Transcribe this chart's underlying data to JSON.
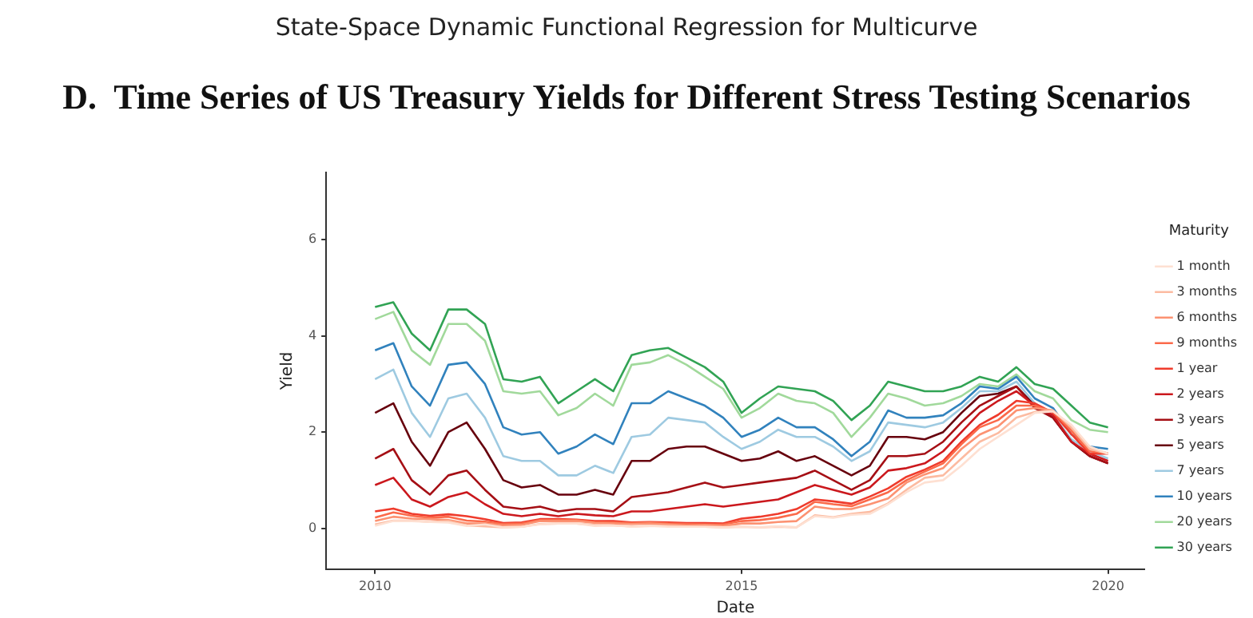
{
  "chart_data": {
    "type": "line",
    "subtitle": "State-Space Dynamic Functional Regression for Multicurve",
    "title": "D.  Time Series of US Treasury Yields for Different Stress Testing Scenarios",
    "xlabel": "Date",
    "ylabel": "Yield",
    "legend_title": "Maturity",
    "legend": "right",
    "grid": false,
    "marker": "none",
    "line_style": "solid",
    "x": [
      "2010-01",
      "2010-04",
      "2010-07",
      "2010-10",
      "2011-01",
      "2011-04",
      "2011-07",
      "2011-10",
      "2012-01",
      "2012-04",
      "2012-07",
      "2012-10",
      "2013-01",
      "2013-04",
      "2013-07",
      "2013-10",
      "2014-01",
      "2014-04",
      "2014-07",
      "2014-10",
      "2015-01",
      "2015-04",
      "2015-07",
      "2015-10",
      "2016-01",
      "2016-04",
      "2016-07",
      "2016-10",
      "2017-01",
      "2017-04",
      "2017-07",
      "2017-10",
      "2018-01",
      "2018-04",
      "2018-07",
      "2018-10",
      "2019-01",
      "2019-04",
      "2019-07",
      "2019-10",
      "2020-01"
    ],
    "xlim": [
      "2009-05",
      "2020-07"
    ],
    "xticks": [
      "2010",
      "2015",
      "2020"
    ],
    "ylim": [
      -0.85,
      7.4
    ],
    "yticks": [
      0,
      2,
      4,
      6
    ],
    "series": [
      {
        "name": "1 month",
        "color": "#fee0d2",
        "values": [
          0.05,
          0.15,
          0.15,
          0.13,
          0.12,
          0.05,
          0.08,
          0.02,
          0.03,
          0.08,
          0.1,
          0.1,
          0.05,
          0.06,
          0.03,
          0.05,
          0.03,
          0.03,
          0.03,
          0.02,
          0.03,
          0.02,
          0.04,
          0.02,
          0.25,
          0.22,
          0.28,
          0.3,
          0.5,
          0.75,
          0.95,
          1.0,
          1.3,
          1.65,
          1.9,
          2.15,
          2.4,
          2.43,
          2.15,
          1.7,
          1.55
        ]
      },
      {
        "name": "3 months",
        "color": "#fcbba1",
        "values": [
          0.08,
          0.16,
          0.16,
          0.13,
          0.15,
          0.06,
          0.04,
          0.02,
          0.03,
          0.09,
          0.1,
          0.1,
          0.07,
          0.06,
          0.04,
          0.05,
          0.05,
          0.04,
          0.03,
          0.02,
          0.03,
          0.02,
          0.03,
          0.02,
          0.27,
          0.23,
          0.3,
          0.34,
          0.52,
          0.8,
          1.05,
          1.1,
          1.45,
          1.8,
          1.98,
          2.3,
          2.42,
          2.45,
          2.1,
          1.65,
          1.55
        ]
      },
      {
        "name": "6 months",
        "color": "#fc9272",
        "values": [
          0.15,
          0.24,
          0.2,
          0.19,
          0.17,
          0.1,
          0.1,
          0.06,
          0.07,
          0.15,
          0.15,
          0.15,
          0.11,
          0.1,
          0.09,
          0.1,
          0.08,
          0.06,
          0.07,
          0.05,
          0.1,
          0.1,
          0.13,
          0.15,
          0.45,
          0.4,
          0.4,
          0.5,
          0.62,
          0.95,
          1.12,
          1.25,
          1.65,
          1.95,
          2.12,
          2.45,
          2.5,
          2.45,
          2.08,
          1.65,
          1.56
        ]
      },
      {
        "name": "9 months",
        "color": "#fb6a4a",
        "values": [
          0.22,
          0.33,
          0.26,
          0.22,
          0.24,
          0.16,
          0.14,
          0.09,
          0.1,
          0.17,
          0.17,
          0.17,
          0.13,
          0.12,
          0.11,
          0.12,
          0.1,
          0.09,
          0.08,
          0.08,
          0.15,
          0.17,
          0.22,
          0.3,
          0.55,
          0.5,
          0.46,
          0.6,
          0.75,
          1.0,
          1.18,
          1.35,
          1.75,
          2.1,
          2.25,
          2.55,
          2.55,
          2.42,
          2.03,
          1.6,
          1.56
        ]
      },
      {
        "name": "1 year",
        "color": "#ef3b2c",
        "values": [
          0.35,
          0.41,
          0.3,
          0.26,
          0.29,
          0.25,
          0.19,
          0.11,
          0.12,
          0.19,
          0.19,
          0.18,
          0.15,
          0.15,
          0.12,
          0.13,
          0.12,
          0.11,
          0.11,
          0.1,
          0.2,
          0.24,
          0.3,
          0.4,
          0.6,
          0.56,
          0.51,
          0.66,
          0.83,
          1.07,
          1.22,
          1.4,
          1.8,
          2.15,
          2.36,
          2.65,
          2.6,
          2.4,
          1.96,
          1.55,
          1.55
        ]
      },
      {
        "name": "2 years",
        "color": "#cb181d",
        "values": [
          0.9,
          1.05,
          0.6,
          0.45,
          0.65,
          0.75,
          0.5,
          0.3,
          0.25,
          0.3,
          0.25,
          0.3,
          0.27,
          0.25,
          0.35,
          0.35,
          0.4,
          0.45,
          0.5,
          0.45,
          0.5,
          0.55,
          0.6,
          0.75,
          0.9,
          0.8,
          0.7,
          0.85,
          1.2,
          1.25,
          1.35,
          1.6,
          2.0,
          2.4,
          2.65,
          2.85,
          2.55,
          2.35,
          1.8,
          1.55,
          1.4
        ]
      },
      {
        "name": "3 years",
        "color": "#a50f15",
        "values": [
          1.45,
          1.65,
          1.0,
          0.7,
          1.1,
          1.2,
          0.8,
          0.45,
          0.4,
          0.45,
          0.35,
          0.4,
          0.4,
          0.35,
          0.65,
          0.7,
          0.75,
          0.85,
          0.95,
          0.85,
          0.9,
          0.95,
          1.0,
          1.05,
          1.2,
          1.0,
          0.8,
          1.0,
          1.5,
          1.5,
          1.55,
          1.8,
          2.2,
          2.55,
          2.75,
          2.95,
          2.5,
          2.3,
          1.8,
          1.5,
          1.35
        ]
      },
      {
        "name": "5 years",
        "color": "#67000d",
        "values": [
          2.4,
          2.6,
          1.8,
          1.3,
          2.0,
          2.2,
          1.65,
          1.0,
          0.85,
          0.9,
          0.7,
          0.7,
          0.8,
          0.7,
          1.4,
          1.4,
          1.65,
          1.7,
          1.7,
          1.55,
          1.4,
          1.45,
          1.6,
          1.4,
          1.5,
          1.3,
          1.1,
          1.3,
          1.9,
          1.9,
          1.85,
          2.0,
          2.4,
          2.75,
          2.8,
          2.95,
          2.55,
          2.3,
          1.8,
          1.5,
          1.35
        ]
      },
      {
        "name": "7 years",
        "color": "#9ecae1",
        "values": [
          3.1,
          3.3,
          2.4,
          1.9,
          2.7,
          2.8,
          2.3,
          1.5,
          1.4,
          1.4,
          1.1,
          1.1,
          1.3,
          1.15,
          1.9,
          1.95,
          2.3,
          2.25,
          2.2,
          1.9,
          1.65,
          1.8,
          2.05,
          1.9,
          1.9,
          1.7,
          1.4,
          1.6,
          2.2,
          2.15,
          2.1,
          2.2,
          2.5,
          2.85,
          2.85,
          3.05,
          2.6,
          2.35,
          1.85,
          1.6,
          1.45
        ]
      },
      {
        "name": "10 years",
        "color": "#3182bd",
        "values": [
          3.7,
          3.85,
          2.95,
          2.55,
          3.4,
          3.45,
          3.0,
          2.1,
          1.95,
          2.0,
          1.55,
          1.7,
          1.95,
          1.75,
          2.6,
          2.6,
          2.85,
          2.7,
          2.55,
          2.3,
          1.9,
          2.05,
          2.3,
          2.1,
          2.1,
          1.85,
          1.5,
          1.8,
          2.45,
          2.3,
          2.3,
          2.35,
          2.6,
          2.95,
          2.9,
          3.15,
          2.7,
          2.5,
          1.95,
          1.7,
          1.65
        ]
      },
      {
        "name": "20 years",
        "color": "#a1d99b",
        "values": [
          4.35,
          4.5,
          3.7,
          3.4,
          4.25,
          4.25,
          3.9,
          2.85,
          2.8,
          2.85,
          2.35,
          2.5,
          2.8,
          2.55,
          3.4,
          3.45,
          3.6,
          3.4,
          3.15,
          2.9,
          2.3,
          2.5,
          2.8,
          2.65,
          2.6,
          2.4,
          1.9,
          2.3,
          2.8,
          2.7,
          2.55,
          2.6,
          2.75,
          3.0,
          2.95,
          3.2,
          2.85,
          2.7,
          2.25,
          2.05,
          2.0
        ]
      },
      {
        "name": "30 years",
        "color": "#31a354",
        "values": [
          4.6,
          4.7,
          4.05,
          3.7,
          4.55,
          4.55,
          4.25,
          3.1,
          3.05,
          3.15,
          2.6,
          2.85,
          3.1,
          2.85,
          3.6,
          3.7,
          3.75,
          3.55,
          3.35,
          3.05,
          2.4,
          2.7,
          2.95,
          2.9,
          2.85,
          2.65,
          2.25,
          2.55,
          3.05,
          2.95,
          2.85,
          2.85,
          2.95,
          3.15,
          3.05,
          3.35,
          3.0,
          2.9,
          2.55,
          2.2,
          2.1
        ]
      }
    ]
  }
}
